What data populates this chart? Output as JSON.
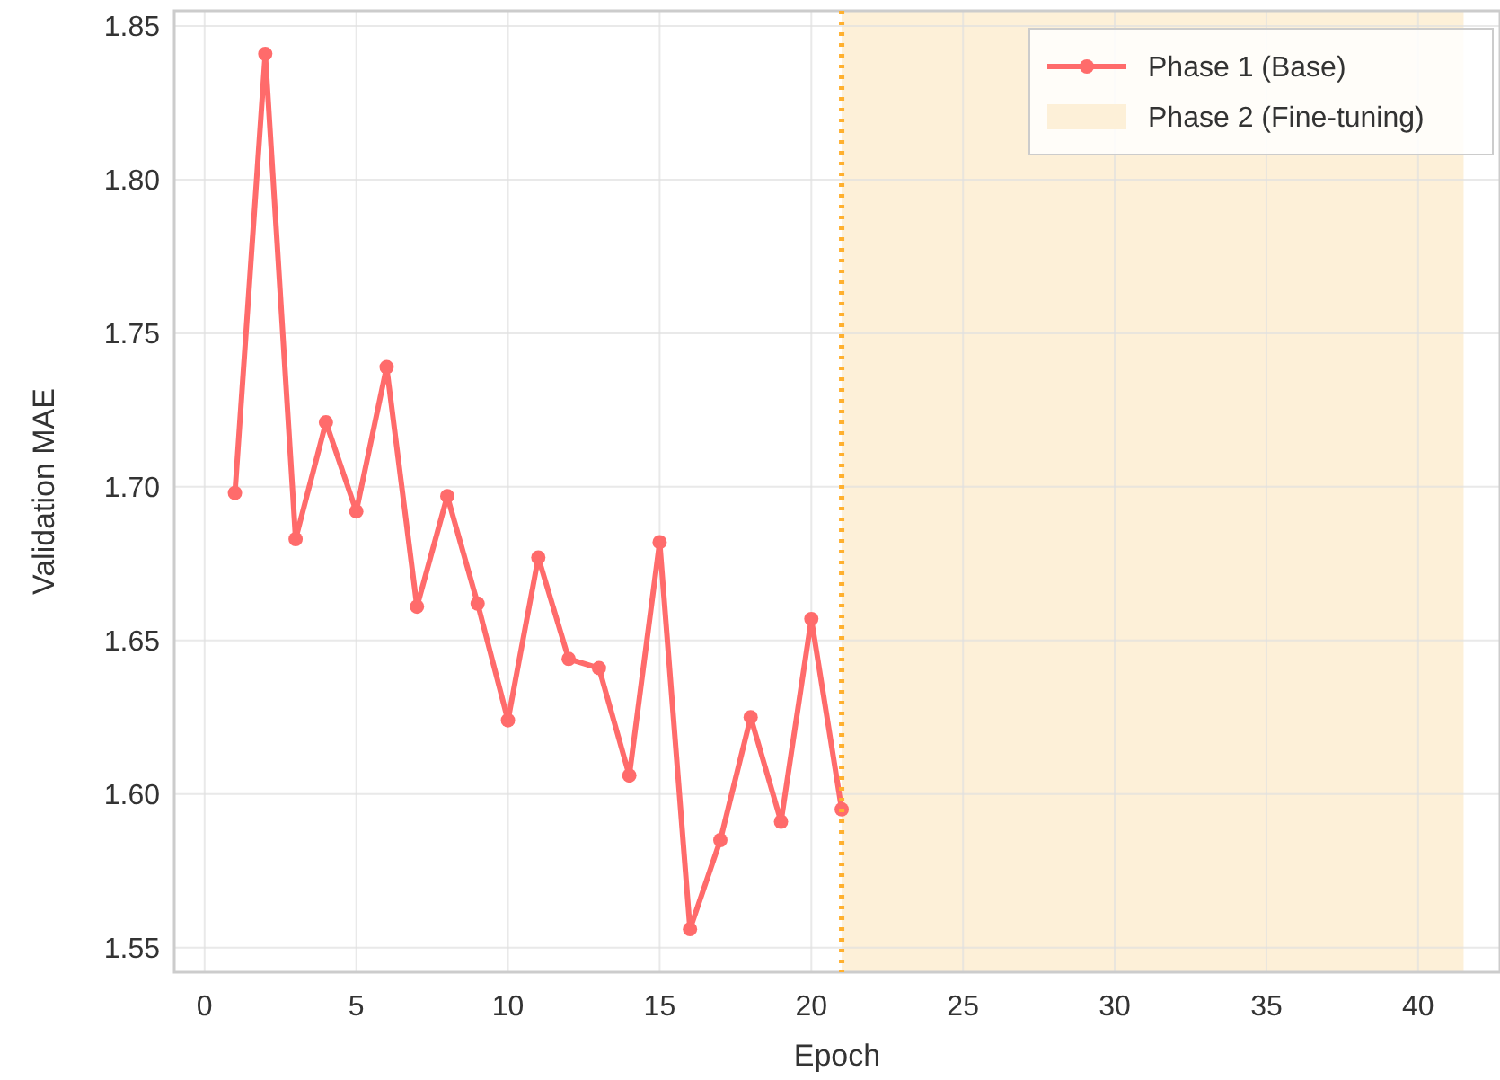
{
  "chart_data": {
    "type": "line",
    "xlabel": "Epoch",
    "ylabel": "Validation MAE",
    "x": [
      1,
      2,
      3,
      4,
      5,
      6,
      7,
      8,
      9,
      10,
      11,
      12,
      13,
      14,
      15,
      16,
      17,
      18,
      19,
      20,
      21
    ],
    "series": [
      {
        "name": "Phase 1 (Base)",
        "color": "#ff6b6b",
        "values": [
          1.698,
          1.841,
          1.683,
          1.721,
          1.692,
          1.739,
          1.661,
          1.697,
          1.662,
          1.624,
          1.677,
          1.644,
          1.641,
          1.606,
          1.682,
          1.556,
          1.585,
          1.625,
          1.591,
          1.657,
          1.595
        ]
      }
    ],
    "xlim": [
      -1,
      42.7
    ],
    "xticks": [
      0,
      5,
      10,
      15,
      20,
      25,
      30,
      35,
      40
    ],
    "ylim": [
      1.542,
      1.855
    ],
    "yticks": [
      1.55,
      {
        "value": 1.6,
        "label": "1.60"
      },
      1.65,
      {
        "value": 1.7,
        "label": "1.70"
      },
      1.75,
      {
        "value": 1.8,
        "label": "1.80"
      },
      1.85
    ],
    "ref_lines": [
      {
        "axis": "x",
        "value": 21,
        "color": "#ffb02e",
        "line_style": "dotted"
      }
    ],
    "bands": [
      {
        "axis": "x",
        "from": 21,
        "to": 41.5,
        "label": "Phase 2 (Fine-tuning)",
        "color": "#fdf0d8"
      }
    ],
    "grid": true,
    "legend": "top right",
    "marker": "circle",
    "line_style": "solid"
  }
}
